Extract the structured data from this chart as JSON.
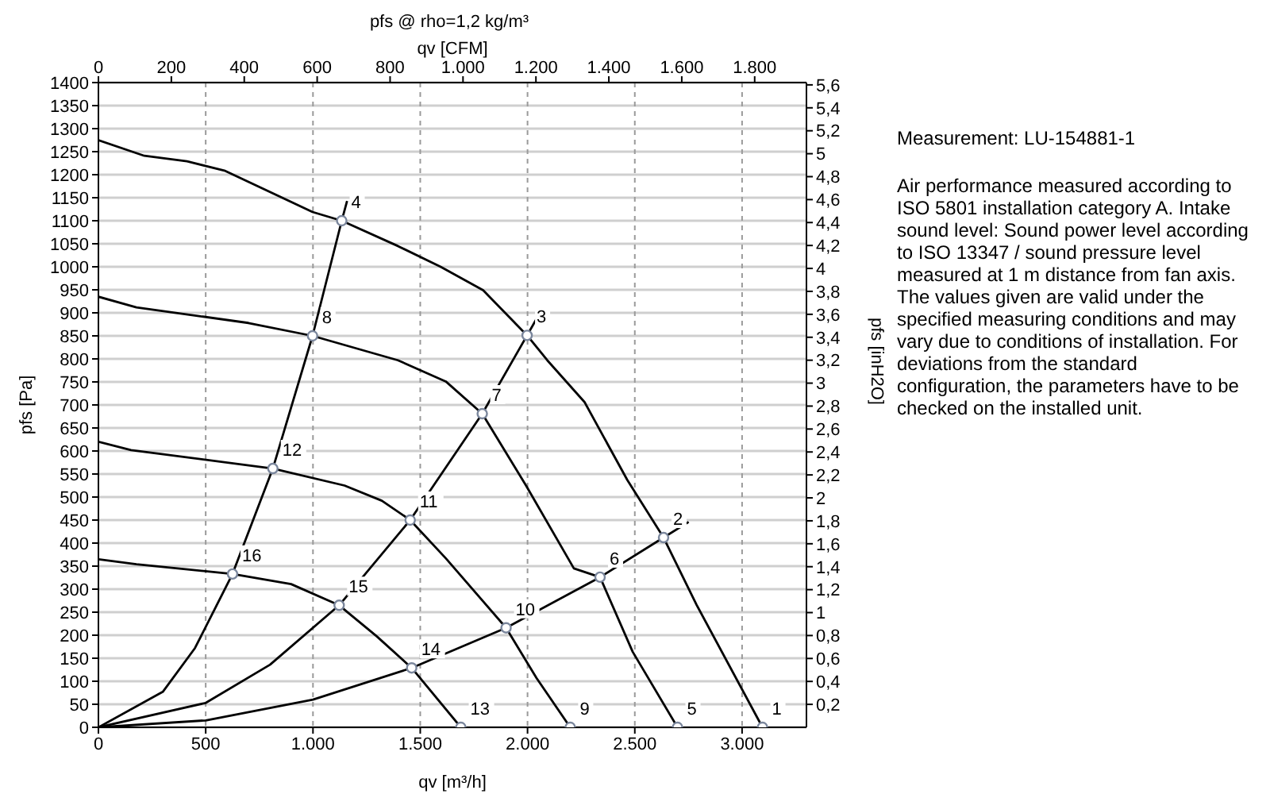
{
  "chart_data": {
    "type": "line",
    "title": "pfs @ rho=1,2 kg/m³",
    "xlabel": "qv [m³/h]",
    "x2label": "qv [CFM]",
    "ylabel": "pfs [Pa]",
    "y2label": "pfs [inH2O]",
    "xlim": [
      0,
      3300
    ],
    "xticks": [
      0,
      500,
      {
        "value": 1000,
        "label": "1.000"
      },
      {
        "value": 1500,
        "label": "1.500"
      },
      {
        "value": 2000,
        "label": "2.000"
      },
      {
        "value": 2500,
        "label": "2.500"
      },
      {
        "value": 3000,
        "label": "3.000"
      }
    ],
    "x2lim": [
      0,
      1942
    ],
    "x2ticks": [
      0,
      200,
      400,
      600,
      800,
      {
        "value": 1000,
        "label": "1.000"
      },
      {
        "value": 1200,
        "label": "1.200"
      },
      {
        "value": 1400,
        "label": "1.400"
      },
      {
        "value": 1600,
        "label": "1.600"
      },
      {
        "value": 1800,
        "label": "1.800"
      }
    ],
    "ylim": [
      0,
      1400
    ],
    "yticks": [
      0,
      50,
      100,
      150,
      200,
      250,
      300,
      350,
      400,
      450,
      500,
      550,
      600,
      650,
      700,
      750,
      800,
      850,
      900,
      950,
      1000,
      1050,
      1100,
      1150,
      1200,
      1250,
      1300,
      1350,
      1400
    ],
    "y2lim": [
      0,
      5.62
    ],
    "y2ticks": [
      {
        "value": 0.2,
        "label": "0,2"
      },
      {
        "value": 0.4,
        "label": "0,4"
      },
      {
        "value": 0.6,
        "label": "0,6"
      },
      {
        "value": 0.8,
        "label": "0,8"
      },
      1,
      {
        "value": 1.2,
        "label": "1,2"
      },
      {
        "value": 1.4,
        "label": "1,4"
      },
      {
        "value": 1.6,
        "label": "1,6"
      },
      {
        "value": 1.8,
        "label": "1,8"
      },
      2,
      {
        "value": 2.2,
        "label": "2,2"
      },
      {
        "value": 2.4,
        "label": "2,4"
      },
      {
        "value": 2.6,
        "label": "2,6"
      },
      {
        "value": 2.8,
        "label": "2,8"
      },
      3,
      {
        "value": 3.2,
        "label": "3,2"
      },
      {
        "value": 3.4,
        "label": "3,4"
      },
      {
        "value": 3.6,
        "label": "3,6"
      },
      {
        "value": 3.8,
        "label": "3,8"
      },
      4,
      {
        "value": 4.2,
        "label": "4,2"
      },
      {
        "value": 4.4,
        "label": "4,4"
      },
      {
        "value": 4.6,
        "label": "4,6"
      },
      {
        "value": 4.8,
        "label": "4,8"
      },
      5,
      {
        "value": 5.2,
        "label": "5,2"
      },
      {
        "value": 5.4,
        "label": "5,4"
      },
      {
        "value": 5.6,
        "label": "5,6"
      }
    ],
    "grid": true,
    "marker": "none",
    "line_style": "solid",
    "series": [
      {
        "color": "#000000",
        "x": [
          0,
          214,
          413,
          587,
          998,
          1134,
          1396,
          1595,
          1793,
          1998,
          2092,
          2266,
          2465,
          2634,
          2789,
          3095
        ],
        "values": [
          1275,
          1241,
          1229,
          1209,
          1119,
          1100,
          1045,
          1000,
          949,
          851,
          797,
          706,
          537,
          412,
          265,
          0
        ]
      },
      {
        "color": "#000000",
        "x": [
          0,
          177,
          699,
          998,
          1396,
          1619,
          1789,
          1993,
          2216,
          2338,
          2490,
          2699
        ],
        "values": [
          935,
          912,
          878,
          850,
          797,
          751,
          681,
          525,
          345,
          326,
          164,
          0
        ]
      },
      {
        "color": "#000000",
        "x": [
          0,
          152,
          813,
          1147,
          1321,
          1453,
          1619,
          1900,
          2042,
          2199
        ],
        "values": [
          620,
          602,
          562,
          525,
          492,
          450,
          367,
          216,
          107,
          0
        ]
      },
      {
        "color": "#000000",
        "x": [
          0,
          177,
          625,
          898,
          1122,
          1296,
          1460,
          1689
        ],
        "values": [
          365,
          354,
          333,
          311,
          265,
          198,
          129,
          0
        ]
      },
      {
        "color": "#000000",
        "x": [
          0,
          300,
          450,
          625,
          813,
          998,
          1134,
          1159
        ],
        "values": [
          0,
          77,
          172,
          333,
          562,
          850,
          1100,
          1143
        ]
      },
      {
        "color": "#000000",
        "x": [
          0,
          500,
          800,
          1122,
          1453,
          1789,
          1998,
          2042
        ],
        "values": [
          0,
          53,
          136,
          265,
          450,
          681,
          851,
          887
        ]
      },
      {
        "color": "#000000",
        "x": [
          0,
          500,
          1000,
          1460,
          1900,
          2338,
          2634,
          2751
        ],
        "values": [
          0,
          15,
          60,
          129,
          216,
          326,
          412,
          446
        ]
      },
      {
        "type": "scatter",
        "marker": "circle",
        "color": "#7a869c",
        "x": [
          3095,
          2634,
          1998,
          1134,
          2699,
          2338,
          1789,
          998,
          2199,
          1900,
          1453,
          813,
          1689,
          1460,
          1122,
          625
        ],
        "values": [
          0,
          412,
          851,
          1100,
          0,
          326,
          681,
          850,
          0,
          216,
          450,
          562,
          0,
          129,
          265,
          333
        ]
      }
    ],
    "annotations": [
      {
        "text": "1",
        "x": 3095,
        "y": 0
      },
      {
        "text": "2",
        "x": 2634,
        "y": 412
      },
      {
        "text": "3",
        "x": 1998,
        "y": 851
      },
      {
        "text": "4",
        "x": 1134,
        "y": 1100
      },
      {
        "text": "5",
        "x": 2699,
        "y": 0
      },
      {
        "text": "6",
        "x": 2338,
        "y": 326
      },
      {
        "text": "7",
        "x": 1789,
        "y": 681
      },
      {
        "text": "8",
        "x": 998,
        "y": 850
      },
      {
        "text": "9",
        "x": 2199,
        "y": 0
      },
      {
        "text": "10",
        "x": 1900,
        "y": 216
      },
      {
        "text": "11",
        "x": 1453,
        "y": 450
      },
      {
        "text": "12",
        "x": 813,
        "y": 562
      },
      {
        "text": "13",
        "x": 1689,
        "y": 0
      },
      {
        "text": "14",
        "x": 1460,
        "y": 129
      },
      {
        "text": "15",
        "x": 1122,
        "y": 265
      },
      {
        "text": "16",
        "x": 625,
        "y": 333
      },
      "Measurement: LU-154881-1",
      "Air performance measured according to ISO 5801 installation category A. Intake sound level: Sound power level according to ISO 13347 / sound pressure level measured at 1 m distance from fan axis. The values given are valid under the specified measuring conditions and may vary due to conditions of installation. For deviations from the standard configuration, the parameters have to be checked on the installed unit."
    ]
  }
}
